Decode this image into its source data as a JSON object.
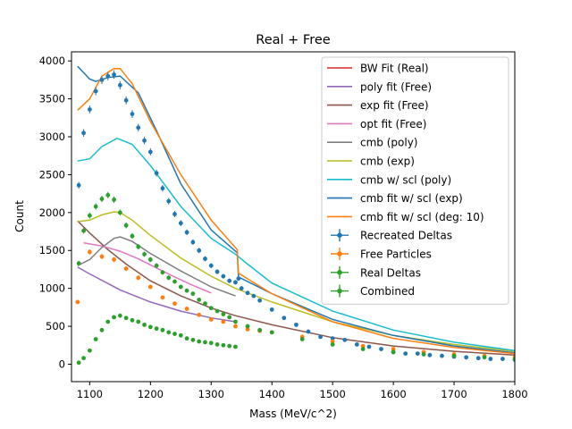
{
  "chart_data": {
    "type": "line",
    "title": "Real + Free",
    "xlabel": "Mass (MeV/c^2)",
    "ylabel": "Count",
    "xlim": [
      1070,
      1800
    ],
    "ylim": [
      -230,
      4120
    ],
    "xticks": [
      1100,
      1200,
      1300,
      1400,
      1500,
      1600,
      1700,
      1800
    ],
    "xtick_labels": [
      "1100",
      "1200",
      "1300",
      "1400",
      "1500",
      "1600",
      "1700",
      "1800"
    ],
    "yticks": [
      0,
      500,
      1000,
      1500,
      2000,
      2500,
      3000,
      3500,
      4000
    ],
    "ytick_labels": [
      "0",
      "500",
      "1000",
      "1500",
      "2000",
      "2500",
      "3000",
      "3500",
      "4000"
    ],
    "grid": false,
    "legend": "top-right",
    "lines": [
      {
        "name": "BW Fit (Real)",
        "color": "#d62728",
        "x": [],
        "y": []
      },
      {
        "name": "poly fit (Free)",
        "color": "#9467bd",
        "x": [
          1080,
          1100,
          1150,
          1200,
          1250,
          1300,
          1340
        ],
        "y": [
          1280,
          1190,
          980,
          820,
          700,
          610,
          560
        ]
      },
      {
        "name": "exp fit (Free)",
        "color": "#8c564b",
        "x": [
          1080,
          1100,
          1130,
          1160,
          1200,
          1250,
          1300,
          1340,
          1400,
          1500,
          1600,
          1700,
          1800
        ],
        "y": [
          1890,
          1730,
          1510,
          1320,
          1100,
          900,
          740,
          640,
          520,
          350,
          240,
          170,
          120
        ]
      },
      {
        "name": "opt fit (Free)",
        "color": "#e377c2",
        "x": [
          1090,
          1120,
          1150,
          1180,
          1210,
          1240,
          1270,
          1300
        ],
        "y": [
          1600,
          1560,
          1490,
          1390,
          1270,
          1150,
          1040,
          940
        ]
      },
      {
        "name": "cmb (poly)",
        "color": "#7f7f7f",
        "x": [
          1080,
          1100,
          1120,
          1140,
          1150,
          1170,
          1200,
          1250,
          1300,
          1340
        ],
        "y": [
          1300,
          1380,
          1540,
          1660,
          1680,
          1620,
          1460,
          1230,
          1020,
          900
        ]
      },
      {
        "name": "cmb (exp)",
        "color": "#bcbd22",
        "x": [
          1080,
          1100,
          1120,
          1140,
          1150,
          1170,
          1200,
          1250,
          1300,
          1340,
          1400,
          1500,
          1600,
          1700,
          1800
        ],
        "y": [
          1880,
          1900,
          1970,
          2010,
          2000,
          1900,
          1700,
          1400,
          1160,
          1000,
          820,
          560,
          380,
          260,
          170
        ]
      },
      {
        "name": "cmb w/ scl (poly)",
        "color": "#17becf",
        "x": [
          1080,
          1100,
          1120,
          1145,
          1170,
          1200,
          1250,
          1300,
          1340,
          1360,
          1400,
          1500,
          1600,
          1700,
          1800
        ],
        "y": [
          2680,
          2710,
          2870,
          2980,
          2900,
          2620,
          2080,
          1660,
          1450,
          1320,
          1070,
          700,
          450,
          290,
          180
        ]
      },
      {
        "name": "cmb fit w/ scl (exp)",
        "color": "#1f77b4",
        "x": [
          1080,
          1100,
          1110,
          1130,
          1150,
          1180,
          1210,
          1250,
          1300,
          1343,
          1345,
          1400,
          1500,
          1600,
          1700,
          1800
        ],
        "y": [
          3930,
          3760,
          3730,
          3780,
          3800,
          3580,
          3080,
          2380,
          1770,
          1470,
          1150,
          930,
          590,
          380,
          240,
          150
        ]
      },
      {
        "name": "cmb fit w/ scl (deg: 10)",
        "color": "#ff7f0e",
        "x": [
          1080,
          1100,
          1120,
          1140,
          1150,
          1170,
          1200,
          1250,
          1300,
          1343,
          1345,
          1400,
          1500,
          1600,
          1700,
          1800
        ],
        "y": [
          3350,
          3500,
          3800,
          3900,
          3900,
          3700,
          3200,
          2500,
          1900,
          1510,
          1200,
          930,
          560,
          340,
          220,
          140
        ]
      }
    ],
    "series": [
      {
        "name": "Recreated Deltas",
        "color": "#1f77b4",
        "x": [
          1082,
          1090,
          1100,
          1110,
          1120,
          1130,
          1140,
          1150,
          1160,
          1170,
          1180,
          1190,
          1200,
          1210,
          1220,
          1230,
          1240,
          1250,
          1260,
          1270,
          1280,
          1290,
          1300,
          1310,
          1320,
          1330,
          1340,
          1345,
          1350,
          1360,
          1370,
          1380,
          1400,
          1420,
          1440,
          1460,
          1480,
          1500,
          1520,
          1540,
          1560,
          1580,
          1600,
          1620,
          1640,
          1660,
          1680,
          1700,
          1720,
          1740,
          1760,
          1780,
          1800
        ],
        "y": [
          2360,
          3050,
          3360,
          3600,
          3750,
          3800,
          3820,
          3680,
          3480,
          3300,
          3120,
          2950,
          2800,
          2520,
          2320,
          2150,
          1980,
          1860,
          1740,
          1610,
          1500,
          1390,
          1300,
          1220,
          1160,
          1100,
          1080,
          1130,
          1000,
          940,
          900,
          840,
          720,
          610,
          520,
          430,
          360,
          340,
          320,
          260,
          230,
          200,
          160,
          140,
          140,
          120,
          110,
          100,
          90,
          80,
          70,
          70,
          60
        ]
      },
      {
        "name": "Free Particles",
        "color": "#ff7f0e",
        "x": [
          1080,
          1100,
          1120,
          1140,
          1160,
          1180,
          1200,
          1220,
          1240,
          1260,
          1280,
          1300,
          1320,
          1340,
          1360,
          1380,
          1400,
          1450,
          1500,
          1550,
          1600,
          1650,
          1700,
          1750,
          1800
        ],
        "y": [
          820,
          1480,
          1420,
          1380,
          1260,
          1140,
          1020,
          880,
          800,
          730,
          650,
          590,
          560,
          500,
          460,
          440,
          420,
          360,
          300,
          240,
          200,
          160,
          130,
          110,
          90
        ]
      },
      {
        "name": "Real Deltas",
        "color": "#2ca02c",
        "x": [
          1082,
          1090,
          1100,
          1110,
          1120,
          1130,
          1140,
          1150,
          1160,
          1170,
          1180,
          1190,
          1200,
          1210,
          1220,
          1230,
          1240,
          1250,
          1260,
          1270,
          1280,
          1290,
          1300,
          1310,
          1320,
          1330,
          1340
        ],
        "y": [
          20,
          80,
          180,
          330,
          450,
          560,
          620,
          640,
          610,
          580,
          560,
          520,
          490,
          470,
          450,
          420,
          400,
          380,
          340,
          320,
          300,
          290,
          280,
          260,
          250,
          240,
          230
        ]
      },
      {
        "name": "Combined",
        "color": "#2ca02c",
        "x": [
          1082,
          1090,
          1100,
          1110,
          1120,
          1130,
          1140,
          1150,
          1160,
          1170,
          1180,
          1190,
          1200,
          1210,
          1220,
          1230,
          1240,
          1250,
          1260,
          1270,
          1280,
          1290,
          1300,
          1310,
          1320,
          1330,
          1340,
          1360,
          1380,
          1400,
          1450,
          1500,
          1550,
          1600,
          1650,
          1700,
          1750,
          1800
        ],
        "y": [
          1330,
          1760,
          1960,
          2080,
          2180,
          2230,
          2170,
          2000,
          1830,
          1690,
          1550,
          1450,
          1380,
          1300,
          1210,
          1140,
          1090,
          1020,
          970,
          930,
          850,
          800,
          740,
          700,
          660,
          620,
          560,
          500,
          450,
          420,
          330,
          260,
          200,
          160,
          130,
          110,
          90,
          70
        ]
      }
    ]
  }
}
